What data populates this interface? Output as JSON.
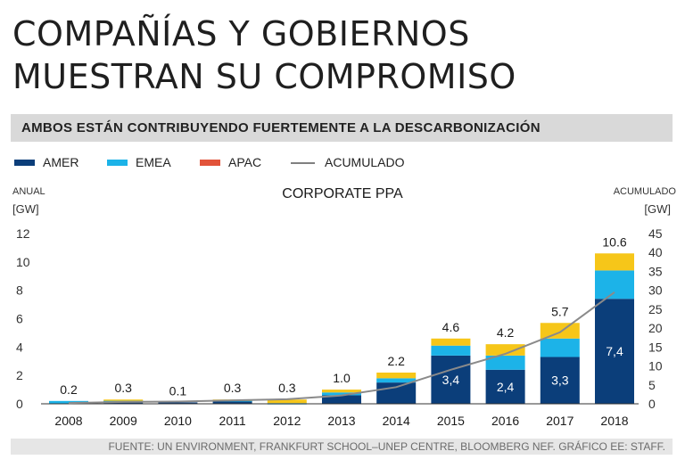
{
  "header": {
    "title_line1": "COMPAÑÍAS Y GOBIERNOS",
    "title_line2": "MUESTRAN SU COMPROMISO",
    "subtitle": "AMBOS ESTÁN CONTRIBUYENDO FUERTEMENTE A LA DESCARBONIZACIÓN"
  },
  "legend": {
    "amer": "AMER",
    "emea": "EMEA",
    "apac": "APAC",
    "acumulado": "ACUMULADO"
  },
  "colors": {
    "amer": "#0b3e7a",
    "emea": "#1cb3e8",
    "apac": "#e2533a",
    "total_cap": "#f6c619",
    "line": "#8a8a8a",
    "axis": "#333333"
  },
  "footer": {
    "source": "FUENTE: UN ENVIRONMENT, FRANKFURT SCHOOL–UNEP CENTRE, BLOOMBERG NEF. GRÁFICO EE: STAFF."
  },
  "chart_data": {
    "type": "bar",
    "title": "CORPORATE PPA",
    "ylabel_left": [
      "ANUAL",
      "[GW]"
    ],
    "ylabel_right": [
      "ACUMULADO",
      "[GW]"
    ],
    "categories": [
      "2008",
      "2009",
      "2010",
      "2011",
      "2012",
      "2013",
      "2014",
      "2015",
      "2016",
      "2017",
      "2018"
    ],
    "totals": [
      0.2,
      0.3,
      0.1,
      0.3,
      0.3,
      1.0,
      2.2,
      4.6,
      4.2,
      5.7,
      10.6
    ],
    "total_labels": [
      "0.2",
      "0.3",
      "0.1",
      "0.3",
      "0.3",
      "1.0",
      "2.2",
      "4.6",
      "4.2",
      "5.7",
      "10.6"
    ],
    "series": [
      {
        "name": "AMER",
        "values": [
          0.0,
          0.2,
          0.1,
          0.2,
          0.0,
          0.6,
          1.5,
          3.4,
          2.4,
          3.3,
          7.4
        ]
      },
      {
        "name": "EMEA",
        "values": [
          0.2,
          0.05,
          0.0,
          0.05,
          0.05,
          0.2,
          0.3,
          0.7,
          1.0,
          1.3,
          2.0
        ]
      },
      {
        "name": "APAC",
        "values": [
          0.0,
          0.0,
          0.0,
          0.0,
          0.0,
          0.0,
          0.0,
          0.0,
          0.0,
          0.0,
          0.0
        ]
      }
    ],
    "amer_labels": [
      "",
      "",
      "",
      "",
      "",
      "",
      "",
      "3,4",
      "2,4",
      "3,3",
      "7,4"
    ],
    "cumulative": {
      "name": "ACUMULADO",
      "values": [
        0.2,
        0.5,
        0.6,
        0.9,
        1.2,
        2.2,
        4.4,
        9.0,
        13.2,
        18.9,
        29.5
      ]
    },
    "ylim_left": [
      0,
      12
    ],
    "yticks_left": [
      0,
      2,
      4,
      6,
      8,
      10,
      12
    ],
    "ylim_right": [
      0,
      45
    ],
    "yticks_right": [
      0,
      5,
      10,
      15,
      20,
      25,
      30,
      35,
      40,
      45
    ]
  }
}
